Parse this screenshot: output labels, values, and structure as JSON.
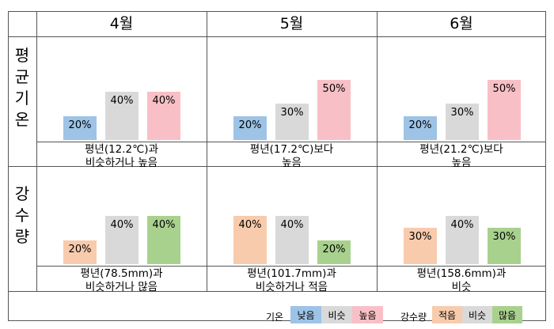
{
  "colors": {
    "low": "#9dc3e6",
    "normal": "#d9d9d9",
    "high_temp": "#f8c0c6",
    "low_precip": "#f8cbad",
    "high_precip": "#a9d18e"
  },
  "headers": [
    "4월",
    "5월",
    "6월"
  ],
  "rows": [
    {
      "label_chars": [
        "평",
        "균",
        "기",
        "온"
      ]
    },
    {
      "label_chars": [
        "강",
        "수",
        "량"
      ]
    }
  ],
  "chart_data": [
    {
      "type": "bar",
      "row": "temperature",
      "month": "4월",
      "categories": [
        "낮음",
        "비슷",
        "높음"
      ],
      "values": [
        20,
        40,
        40
      ],
      "value_labels": [
        "20%",
        "40%",
        "40%"
      ],
      "caption": "평년(12.2℃)과\n비슷하거나 높음"
    },
    {
      "type": "bar",
      "row": "temperature",
      "month": "5월",
      "categories": [
        "낮음",
        "비슷",
        "높음"
      ],
      "values": [
        20,
        30,
        50
      ],
      "value_labels": [
        "20%",
        "30%",
        "50%"
      ],
      "caption": "평년(17.2℃)보다\n높음"
    },
    {
      "type": "bar",
      "row": "temperature",
      "month": "6월",
      "categories": [
        "낮음",
        "비슷",
        "높음"
      ],
      "values": [
        20,
        30,
        50
      ],
      "value_labels": [
        "20%",
        "30%",
        "50%"
      ],
      "caption": "평년(21.2℃)보다\n높음"
    },
    {
      "type": "bar",
      "row": "precipitation",
      "month": "4월",
      "categories": [
        "적음",
        "비슷",
        "많음"
      ],
      "values": [
        20,
        40,
        40
      ],
      "value_labels": [
        "20%",
        "40%",
        "40%"
      ],
      "caption": "평년(78.5mm)과\n비슷하거나 많음"
    },
    {
      "type": "bar",
      "row": "precipitation",
      "month": "5월",
      "categories": [
        "적음",
        "비슷",
        "많음"
      ],
      "values": [
        40,
        40,
        20
      ],
      "value_labels": [
        "40%",
        "40%",
        "20%"
      ],
      "caption": "평년(101.7mm)과\n비슷하거나 적음"
    },
    {
      "type": "bar",
      "row": "precipitation",
      "month": "6월",
      "categories": [
        "적음",
        "비슷",
        "많음"
      ],
      "values": [
        30,
        40,
        30
      ],
      "value_labels": [
        "30%",
        "40%",
        "30%"
      ],
      "caption": "평년(158.6mm)과\n비슷"
    }
  ],
  "legend": {
    "temp_title": "기온",
    "temp_items": [
      "낮음",
      "비슷",
      "높음"
    ],
    "precip_title": "강수량",
    "precip_items": [
      "적음",
      "비슷",
      "많음"
    ]
  }
}
